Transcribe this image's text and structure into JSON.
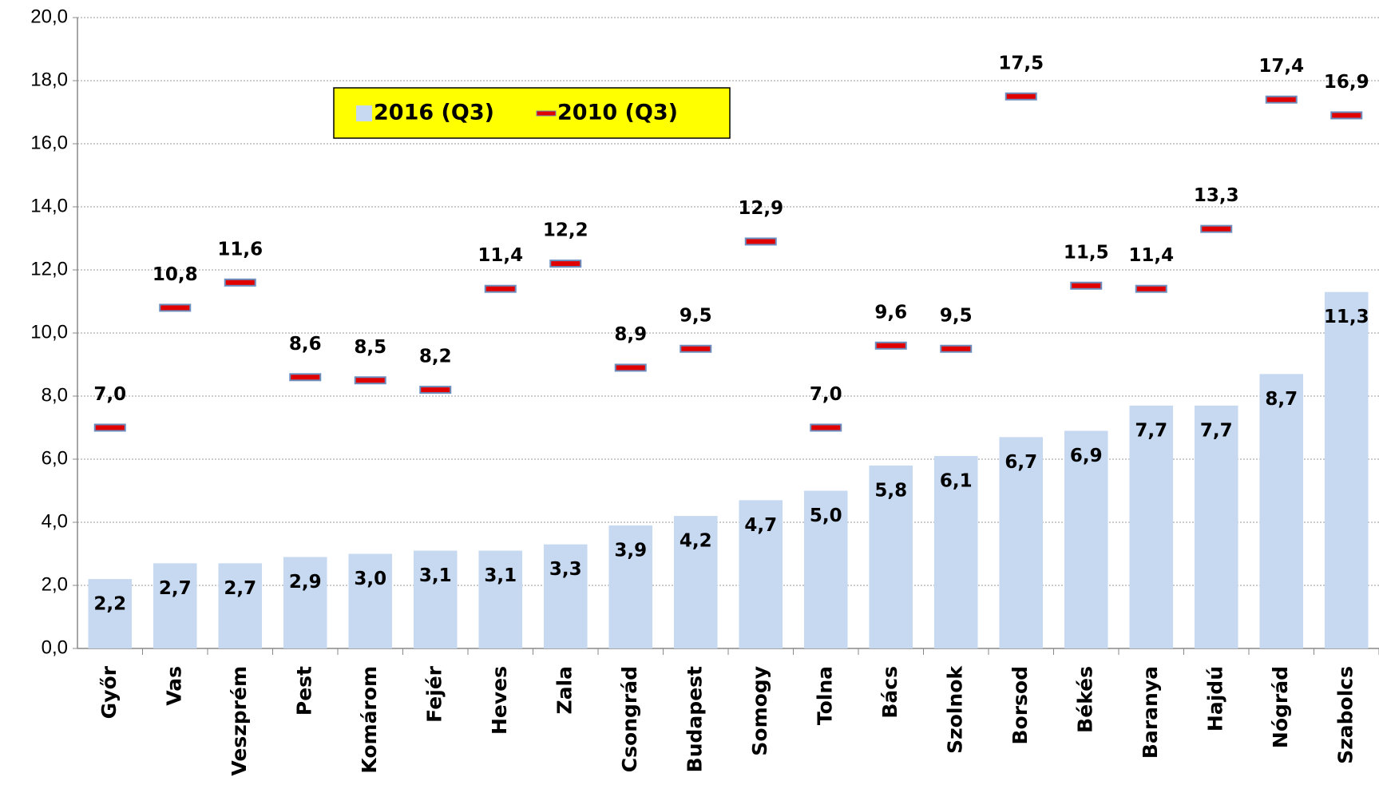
{
  "chart_data": {
    "type": "bar-marker",
    "categories": [
      "Győr",
      "Vas",
      "Veszprém",
      "Pest",
      "Komárom",
      "Fejér",
      "Heves",
      "Zala",
      "Csongrád",
      "Budapest",
      "Somogy",
      "Tolna",
      "Bács",
      "Szolnok",
      "Borsod",
      "Békés",
      "Baranya",
      "Hajdú",
      "Nógrád",
      "Szabolcs"
    ],
    "series": [
      {
        "name": "2016 (Q3)",
        "color": "#c6d9f1",
        "kind": "bar",
        "values": [
          2.2,
          2.7,
          2.7,
          2.9,
          3.0,
          3.1,
          3.1,
          3.3,
          3.9,
          4.2,
          4.7,
          5.0,
          5.8,
          6.1,
          6.7,
          6.9,
          7.7,
          7.7,
          8.7,
          11.3
        ],
        "value_labels": [
          "2,2",
          "2,7",
          "2,7",
          "2,9",
          "3,0",
          "3,1",
          "3,1",
          "3,3",
          "3,9",
          "4,2",
          "4,7",
          "5,0",
          "5,8",
          "6,1",
          "6,7",
          "6,9",
          "7,7",
          "7,7",
          "8,7",
          "11,3"
        ]
      },
      {
        "name": "2010 (Q3)",
        "color": "#e00000",
        "kind": "marker",
        "values": [
          7.0,
          10.8,
          11.6,
          8.6,
          8.5,
          8.2,
          11.4,
          12.2,
          8.9,
          9.5,
          12.9,
          7.0,
          9.6,
          9.5,
          17.5,
          11.5,
          11.4,
          13.3,
          17.4,
          16.9
        ],
        "value_labels": [
          "7,0",
          "10,8",
          "11,6",
          "8,6",
          "8,5",
          "8,2",
          "11,4",
          "12,2",
          "8,9",
          "9,5",
          "12,9",
          "7,0",
          "9,6",
          "9,5",
          "17,5",
          "11,5",
          "11,4",
          "13,3",
          "17,4",
          "16,9"
        ]
      }
    ],
    "ylim": [
      0,
      20
    ],
    "yticks": [
      {
        "value": 0,
        "label": "0,0"
      },
      {
        "value": 2,
        "label": "2,0"
      },
      {
        "value": 4,
        "label": "4,0"
      },
      {
        "value": 6,
        "label": "6,0"
      },
      {
        "value": 8,
        "label": "8,0"
      },
      {
        "value": 10,
        "label": "10,0"
      },
      {
        "value": 12,
        "label": "12,0"
      },
      {
        "value": 14,
        "label": "14,0"
      },
      {
        "value": 16,
        "label": "16,0"
      },
      {
        "value": 18,
        "label": "18,0"
      },
      {
        "value": 20,
        "label": "20,0"
      }
    ],
    "grid": true,
    "legend": "top-left",
    "legend_color": "#ffff00"
  }
}
